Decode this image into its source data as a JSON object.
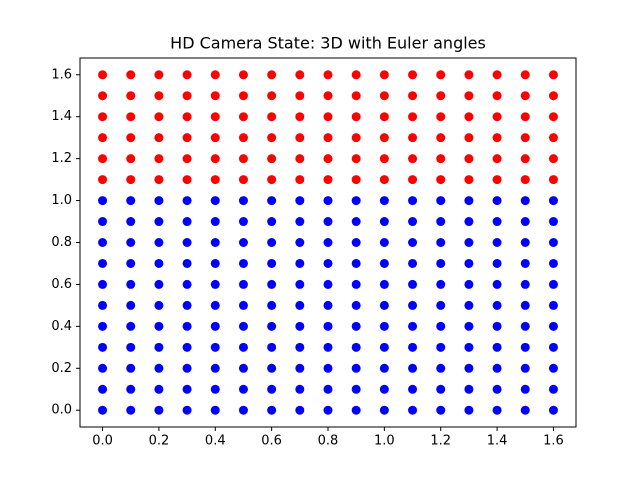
{
  "chart_data": {
    "type": "scatter",
    "title": "HD Camera State: 3D with Euler angles",
    "xlim": [
      -0.08,
      1.68
    ],
    "ylim": [
      -0.08,
      1.68
    ],
    "xticks": [
      {
        "value": 0,
        "label": "0.0"
      },
      0.2,
      0.4,
      0.6,
      0.8,
      {
        "value": 1,
        "label": "1.0"
      },
      1.2,
      1.4,
      1.6
    ],
    "yticks": [
      {
        "value": 0,
        "label": "0.0"
      },
      0.2,
      0.4,
      0.6,
      0.8,
      {
        "value": 1,
        "label": "1.0"
      },
      1.2,
      1.4,
      1.6
    ],
    "series": [
      {
        "color": "#0000ff",
        "x": [
          0,
          0.1,
          0.2,
          0.3,
          0.4,
          0.5,
          0.6,
          0.7,
          0.8,
          0.9,
          1,
          1.1,
          1.2,
          1.3,
          1.4,
          1.5,
          1.6,
          0,
          0.1,
          0.2,
          0.3,
          0.4,
          0.5,
          0.6,
          0.7,
          0.8,
          0.9,
          1,
          1.1,
          1.2,
          1.3,
          1.4,
          1.5,
          1.6,
          0,
          0.1,
          0.2,
          0.3,
          0.4,
          0.5,
          0.6,
          0.7,
          0.8,
          0.9,
          1,
          1.1,
          1.2,
          1.3,
          1.4,
          1.5,
          1.6,
          0,
          0.1,
          0.2,
          0.3,
          0.4,
          0.5,
          0.6,
          0.7,
          0.8,
          0.9,
          1,
          1.1,
          1.2,
          1.3,
          1.4,
          1.5,
          1.6,
          0,
          0.1,
          0.2,
          0.3,
          0.4,
          0.5,
          0.6,
          0.7,
          0.8,
          0.9,
          1,
          1.1,
          1.2,
          1.3,
          1.4,
          1.5,
          1.6,
          0,
          0.1,
          0.2,
          0.3,
          0.4,
          0.5,
          0.6,
          0.7,
          0.8,
          0.9,
          1,
          1.1,
          1.2,
          1.3,
          1.4,
          1.5,
          1.6,
          0,
          0.1,
          0.2,
          0.3,
          0.4,
          0.5,
          0.6,
          0.7,
          0.8,
          0.9,
          1,
          1.1,
          1.2,
          1.3,
          1.4,
          1.5,
          1.6,
          0,
          0.1,
          0.2,
          0.3,
          0.4,
          0.5,
          0.6,
          0.7,
          0.8,
          0.9,
          1,
          1.1,
          1.2,
          1.3,
          1.4,
          1.5,
          1.6,
          0,
          0.1,
          0.2,
          0.3,
          0.4,
          0.5,
          0.6,
          0.7,
          0.8,
          0.9,
          1,
          1.1,
          1.2,
          1.3,
          1.4,
          1.5,
          1.6,
          0,
          0.1,
          0.2,
          0.3,
          0.4,
          0.5,
          0.6,
          0.7,
          0.8,
          0.9,
          1,
          1.1,
          1.2,
          1.3,
          1.4,
          1.5,
          1.6,
          0,
          0.1,
          0.2,
          0.3,
          0.4,
          0.5,
          0.6,
          0.7,
          0.8,
          0.9,
          1,
          1.1,
          1.2,
          1.3,
          1.4,
          1.5,
          1.6
        ],
        "y": [
          0,
          0,
          0,
          0,
          0,
          0,
          0,
          0,
          0,
          0,
          0,
          0,
          0,
          0,
          0,
          0,
          0,
          0.1,
          0.1,
          0.1,
          0.1,
          0.1,
          0.1,
          0.1,
          0.1,
          0.1,
          0.1,
          0.1,
          0.1,
          0.1,
          0.1,
          0.1,
          0.1,
          0.1,
          0.2,
          0.2,
          0.2,
          0.2,
          0.2,
          0.2,
          0.2,
          0.2,
          0.2,
          0.2,
          0.2,
          0.2,
          0.2,
          0.2,
          0.2,
          0.2,
          0.2,
          0.3,
          0.3,
          0.3,
          0.3,
          0.3,
          0.3,
          0.3,
          0.3,
          0.3,
          0.3,
          0.3,
          0.3,
          0.3,
          0.3,
          0.3,
          0.3,
          0.3,
          0.4,
          0.4,
          0.4,
          0.4,
          0.4,
          0.4,
          0.4,
          0.4,
          0.4,
          0.4,
          0.4,
          0.4,
          0.4,
          0.4,
          0.4,
          0.4,
          0.4,
          0.5,
          0.5,
          0.5,
          0.5,
          0.5,
          0.5,
          0.5,
          0.5,
          0.5,
          0.5,
          0.5,
          0.5,
          0.5,
          0.5,
          0.5,
          0.5,
          0.5,
          0.6,
          0.6,
          0.6,
          0.6,
          0.6,
          0.6,
          0.6,
          0.6,
          0.6,
          0.6,
          0.6,
          0.6,
          0.6,
          0.6,
          0.6,
          0.6,
          0.6,
          0.7,
          0.7,
          0.7,
          0.7,
          0.7,
          0.7,
          0.7,
          0.7,
          0.7,
          0.7,
          0.7,
          0.7,
          0.7,
          0.7,
          0.7,
          0.7,
          0.7,
          0.8,
          0.8,
          0.8,
          0.8,
          0.8,
          0.8,
          0.8,
          0.8,
          0.8,
          0.8,
          0.8,
          0.8,
          0.8,
          0.8,
          0.8,
          0.8,
          0.8,
          0.9,
          0.9,
          0.9,
          0.9,
          0.9,
          0.9,
          0.9,
          0.9,
          0.9,
          0.9,
          0.9,
          0.9,
          0.9,
          0.9,
          0.9,
          0.9,
          0.9,
          1,
          1,
          1,
          1,
          1,
          1,
          1,
          1,
          1,
          1,
          1,
          1,
          1,
          1,
          1,
          1,
          1
        ]
      },
      {
        "color": "#ff0000",
        "x": [
          0,
          0.1,
          0.2,
          0.3,
          0.4,
          0.5,
          0.6,
          0.7,
          0.8,
          0.9,
          1,
          1.1,
          1.2,
          1.3,
          1.4,
          1.5,
          1.6,
          0,
          0.1,
          0.2,
          0.3,
          0.4,
          0.5,
          0.6,
          0.7,
          0.8,
          0.9,
          1,
          1.1,
          1.2,
          1.3,
          1.4,
          1.5,
          1.6,
          0,
          0.1,
          0.2,
          0.3,
          0.4,
          0.5,
          0.6,
          0.7,
          0.8,
          0.9,
          1,
          1.1,
          1.2,
          1.3,
          1.4,
          1.5,
          1.6,
          0,
          0.1,
          0.2,
          0.3,
          0.4,
          0.5,
          0.6,
          0.7,
          0.8,
          0.9,
          1,
          1.1,
          1.2,
          1.3,
          1.4,
          1.5,
          1.6,
          0,
          0.1,
          0.2,
          0.3,
          0.4,
          0.5,
          0.6,
          0.7,
          0.8,
          0.9,
          1,
          1.1,
          1.2,
          1.3,
          1.4,
          1.5,
          1.6,
          0,
          0.1,
          0.2,
          0.3,
          0.4,
          0.5,
          0.6,
          0.7,
          0.8,
          0.9,
          1,
          1.1,
          1.2,
          1.3,
          1.4,
          1.5,
          1.6
        ],
        "y": [
          1.1,
          1.1,
          1.1,
          1.1,
          1.1,
          1.1,
          1.1,
          1.1,
          1.1,
          1.1,
          1.1,
          1.1,
          1.1,
          1.1,
          1.1,
          1.1,
          1.1,
          1.2,
          1.2,
          1.2,
          1.2,
          1.2,
          1.2,
          1.2,
          1.2,
          1.2,
          1.2,
          1.2,
          1.2,
          1.2,
          1.2,
          1.2,
          1.2,
          1.2,
          1.3,
          1.3,
          1.3,
          1.3,
          1.3,
          1.3,
          1.3,
          1.3,
          1.3,
          1.3,
          1.3,
          1.3,
          1.3,
          1.3,
          1.3,
          1.3,
          1.3,
          1.4,
          1.4,
          1.4,
          1.4,
          1.4,
          1.4,
          1.4,
          1.4,
          1.4,
          1.4,
          1.4,
          1.4,
          1.4,
          1.4,
          1.4,
          1.4,
          1.4,
          1.5,
          1.5,
          1.5,
          1.5,
          1.5,
          1.5,
          1.5,
          1.5,
          1.5,
          1.5,
          1.5,
          1.5,
          1.5,
          1.5,
          1.5,
          1.5,
          1.5,
          1.6,
          1.6,
          1.6,
          1.6,
          1.6,
          1.6,
          1.6,
          1.6,
          1.6,
          1.6,
          1.6,
          1.6,
          1.6,
          1.6,
          1.6,
          1.6,
          1.6
        ]
      }
    ]
  }
}
